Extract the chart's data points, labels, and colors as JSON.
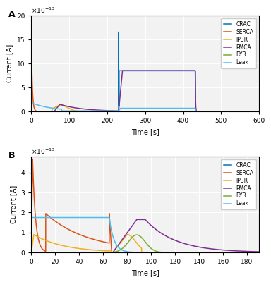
{
  "colors": {
    "CRAC": "#0072BD",
    "SERCA": "#D95319",
    "IP3R": "#EDB120",
    "PMCA": "#7E2F8E",
    "RYR": "#77AC30",
    "Leak": "#4DBEEE"
  },
  "panel_A": {
    "xlim": [
      0,
      600
    ],
    "ylim_scale": [
      0,
      20
    ],
    "xticks": [
      0,
      100,
      200,
      300,
      400,
      500,
      600
    ],
    "yticks_scale": [
      0,
      5,
      10,
      15,
      20
    ]
  },
  "panel_B": {
    "xlim": [
      0,
      190
    ],
    "ylim_scale": [
      0,
      4.8
    ],
    "xticks": [
      0,
      20,
      40,
      60,
      80,
      100,
      120,
      140,
      160,
      180
    ],
    "yticks_scale": [
      0,
      1,
      2,
      3,
      4
    ]
  },
  "scale": 1e-13,
  "background": "#F2F2F2",
  "xlabel": "Time [s]",
  "ylabel": "Current [A]",
  "legend_labels": [
    "CRAC",
    "SERCA",
    "IP3R",
    "PMCA",
    "RYR",
    "Leak"
  ]
}
